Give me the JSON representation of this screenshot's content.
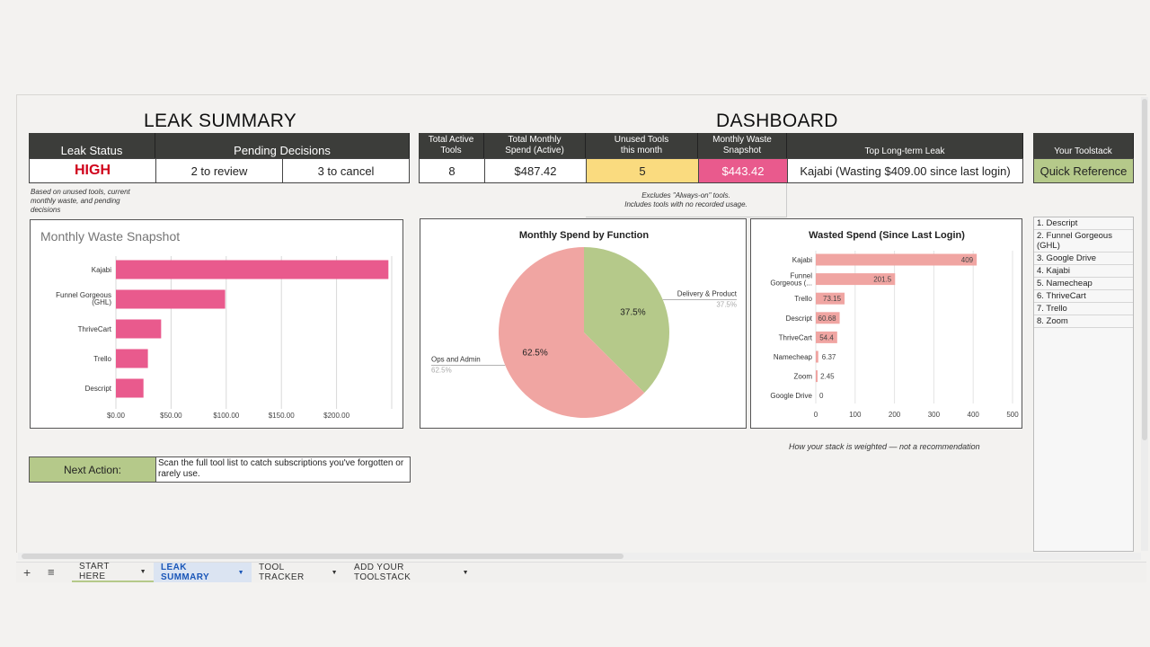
{
  "leak_summary": {
    "title": "LEAK SUMMARY",
    "leak_status_header": "Leak Status",
    "pending_header": "Pending Decisions",
    "leak_status_value": "HIGH",
    "to_review": "2 to review",
    "to_cancel": "3 to cancel",
    "note": "Based on unused tools, current monthly waste, and pending decisions"
  },
  "dashboard": {
    "title": "DASHBOARD",
    "headers": {
      "active_tools": "Total Active Tools",
      "monthly_spend": "Total Monthly Spend (Active)",
      "unused_tools": "Unused Tools this month",
      "waste_snapshot": "Monthly Waste Snapshot",
      "top_leak": "Top Long-term Leak"
    },
    "values": {
      "active_tools": "8",
      "monthly_spend": "$487.42",
      "unused_tools": "5",
      "waste_snapshot": "$443.42",
      "top_leak": "Kajabi (Wasting $409.00 since last login)"
    },
    "unused_note_1": "Excludes \"Always-on\" tools.",
    "unused_note_2": "Includes tools with no recorded usage.",
    "weighted_note": "How your stack is weighted — not a recommendation",
    "colors": {
      "yellow": "#fadb7f",
      "pink": "#e95a8d",
      "green": "#b5c98a",
      "header": "#3c3d3a"
    }
  },
  "toolstack": {
    "header": "Your Toolstack",
    "button": "Quick Reference",
    "items": [
      "1. Descript",
      "2. Funnel Gorgeous (GHL)",
      "3. Google Drive",
      "4. Kajabi",
      "5. Namecheap",
      "6. ThriveCart",
      "7. Trello",
      "8. Zoom"
    ]
  },
  "next_action": {
    "label": "Next Action:",
    "text": "Scan the full tool list to catch subscriptions you've forgotten or rarely use."
  },
  "chart_data": [
    {
      "type": "bar",
      "title": "Monthly Waste Snapshot",
      "orientation": "horizontal",
      "categories": [
        "Kajabi",
        "Funnel Gorgeous (GHL)",
        "ThriveCart",
        "Trello",
        "Descript"
      ],
      "values": [
        247,
        99,
        41,
        29,
        25
      ],
      "xlim": [
        0,
        250
      ],
      "ticks": [
        "$0.00",
        "$50.00",
        "$100.00",
        "$150.00",
        "$200.00"
      ],
      "color": "#e95a8d"
    },
    {
      "type": "pie",
      "title": "Monthly Spend by Function",
      "slices": [
        {
          "label": "Delivery & Product",
          "value": 37.5,
          "pct": "37.5%",
          "color": "#b5c98a"
        },
        {
          "label": "Ops and Admin",
          "value": 62.5,
          "pct": "62.5%",
          "color": "#f0a5a2"
        }
      ]
    },
    {
      "type": "bar",
      "title": "Wasted Spend (Since Last Login)",
      "orientation": "horizontal",
      "categories": [
        "Kajabi",
        "Funnel Gorgeous (...",
        "Trello",
        "Descript",
        "ThriveCart",
        "Namecheap",
        "Zoom",
        "Google Drive"
      ],
      "values": [
        409,
        201.5,
        73.15,
        60.68,
        54.4,
        6.37,
        2.45,
        0
      ],
      "labels": [
        "409",
        "201.5",
        "73.15",
        "60.68",
        "54.4",
        "6.37",
        "2.45",
        "0"
      ],
      "xlim": [
        0,
        500
      ],
      "ticks": [
        "0",
        "100",
        "200",
        "300",
        "400",
        "500"
      ],
      "color": "#f0a5a2"
    }
  ],
  "tabs": [
    {
      "label": "START HERE",
      "active": false
    },
    {
      "label": "LEAK SUMMARY",
      "active": true
    },
    {
      "label": "TOOL TRACKER",
      "active": false
    },
    {
      "label": "ADD YOUR TOOLSTACK",
      "active": false
    }
  ],
  "tabbar": {
    "add": "+",
    "menu": "≡",
    "caret": "▼"
  }
}
